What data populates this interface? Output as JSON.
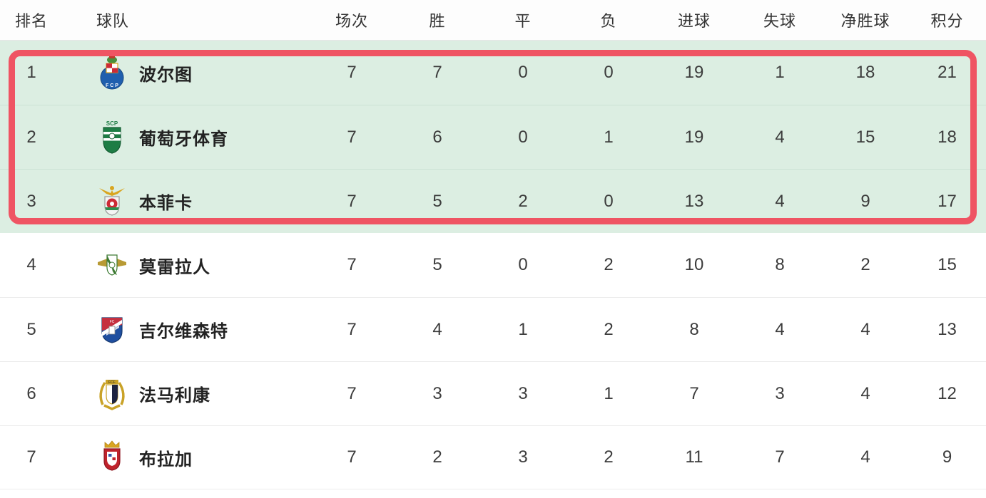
{
  "colors": {
    "highlight_row_bg": "#dceee2",
    "highlight_border_red": "#ef5463",
    "row_divider_green": "#cbe2d4",
    "row_divider_gray": "#ececec",
    "header_text": "#333333",
    "cell_text": "#3c3c3c"
  },
  "table": {
    "columns": [
      {
        "key": "rank",
        "label": "排名"
      },
      {
        "key": "team",
        "label": "球队"
      },
      {
        "key": "played",
        "label": "场次"
      },
      {
        "key": "wins",
        "label": "胜"
      },
      {
        "key": "draws",
        "label": "平"
      },
      {
        "key": "losses",
        "label": "负"
      },
      {
        "key": "goals_for",
        "label": "进球"
      },
      {
        "key": "goals_against",
        "label": "失球"
      },
      {
        "key": "goal_diff",
        "label": "净胜球"
      },
      {
        "key": "points",
        "label": "积分"
      }
    ],
    "rows": [
      {
        "rank": "1",
        "team": "波尔图",
        "logo": "porto",
        "highlighted": true,
        "stats": [
          "7",
          "7",
          "0",
          "0",
          "19",
          "1",
          "18",
          "21"
        ]
      },
      {
        "rank": "2",
        "team": "葡萄牙体育",
        "logo": "sporting",
        "highlighted": true,
        "stats": [
          "7",
          "6",
          "0",
          "1",
          "19",
          "4",
          "15",
          "18"
        ]
      },
      {
        "rank": "3",
        "team": "本菲卡",
        "logo": "benfica",
        "highlighted": true,
        "stats": [
          "7",
          "5",
          "2",
          "0",
          "13",
          "4",
          "9",
          "17"
        ]
      },
      {
        "rank": "4",
        "team": "莫雷拉人",
        "logo": "moreirense",
        "highlighted": false,
        "stats": [
          "7",
          "5",
          "0",
          "2",
          "10",
          "8",
          "2",
          "15"
        ]
      },
      {
        "rank": "5",
        "team": "吉尔维森特",
        "logo": "gil-vicente",
        "highlighted": false,
        "stats": [
          "7",
          "4",
          "1",
          "2",
          "8",
          "4",
          "4",
          "13"
        ]
      },
      {
        "rank": "6",
        "team": "法马利康",
        "logo": "famalicao",
        "highlighted": false,
        "stats": [
          "7",
          "3",
          "3",
          "1",
          "7",
          "3",
          "4",
          "12"
        ]
      },
      {
        "rank": "7",
        "team": "布拉加",
        "logo": "braga",
        "highlighted": false,
        "stats": [
          "7",
          "2",
          "3",
          "2",
          "11",
          "7",
          "4",
          "9"
        ]
      }
    ]
  }
}
